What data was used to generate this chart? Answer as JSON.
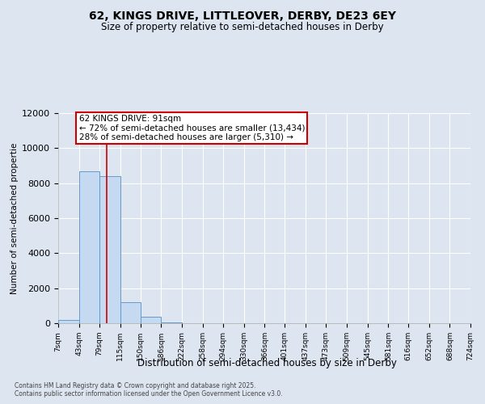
{
  "title": "62, KINGS DRIVE, LITTLEOVER, DERBY, DE23 6EY",
  "subtitle": "Size of property relative to semi-detached houses in Derby",
  "xlabel": "Distribution of semi-detached houses by size in Derby",
  "ylabel": "Number of semi-detached propertie",
  "footnote1": "Contains HM Land Registry data © Crown copyright and database right 2025.",
  "footnote2": "Contains public sector information licensed under the Open Government Licence v3.0.",
  "annotation_title": "62 KINGS DRIVE: 91sqm",
  "annotation_line1": "← 72% of semi-detached houses are smaller (13,434)",
  "annotation_line2": "28% of semi-detached houses are larger (5,310) →",
  "property_size": 91,
  "bin_edges": [
    7,
    43,
    79,
    115,
    150,
    186,
    222,
    258,
    294,
    330,
    366,
    401,
    437,
    473,
    509,
    545,
    581,
    616,
    652,
    688,
    724
  ],
  "bin_counts": [
    200,
    8700,
    8400,
    1200,
    380,
    60,
    20,
    10,
    5,
    3,
    2,
    1,
    1,
    1,
    0,
    0,
    0,
    0,
    0,
    0
  ],
  "bar_facecolor": "#c5d9f0",
  "bar_edgecolor": "#6699cc",
  "redline_color": "#cc0000",
  "annotation_box_edgecolor": "#cc0000",
  "annotation_box_facecolor": "#ffffff",
  "background_color": "#dde5f0",
  "ylim": [
    0,
    12000
  ],
  "yticks": [
    0,
    2000,
    4000,
    6000,
    8000,
    10000,
    12000
  ]
}
